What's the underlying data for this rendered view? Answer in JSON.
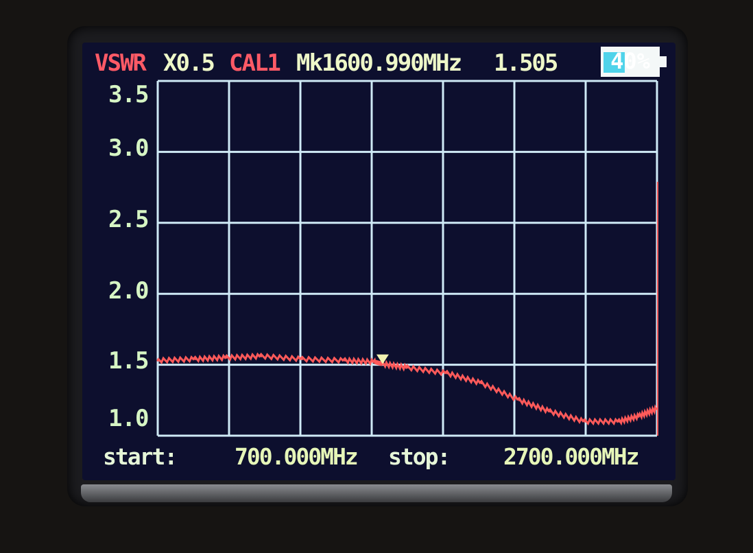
{
  "header": {
    "mode": "VSWR",
    "scale": "X0.5",
    "cal": "CAL1",
    "marker_label": "Mk1600.990MHz",
    "marker_value": "1.505",
    "battery_text": "40%",
    "battery_level_percent": 40
  },
  "footer": {
    "start_label": "start:",
    "start_value": "700.000MHz",
    "stop_label": "stop:",
    "stop_value": "2700.000MHz"
  },
  "colors": {
    "trace": "#ff5a5a",
    "grid": "#cfeaf6",
    "screen": "#0d0f2e",
    "mode": "#ff5a66",
    "marker": "#f2f2b0"
  },
  "chart_data": {
    "type": "line",
    "xlabel": "",
    "ylabel": "",
    "xlim": [
      700,
      2700
    ],
    "ylim": [
      1.0,
      3.5
    ],
    "yticks": [
      "3.5",
      "3.0",
      "2.5",
      "2.0",
      "1.5",
      "1.0"
    ],
    "x_divisions": 7,
    "grid": true,
    "series": [
      {
        "x": [
          700,
          850,
          976,
          1114,
          1279,
          1450,
          1569,
          1601,
          1700,
          1859,
          1997,
          2148,
          2272,
          2410,
          2548,
          2631,
          2700
        ],
        "y": [
          1.53,
          1.54,
          1.55,
          1.56,
          1.54,
          1.53,
          1.52,
          1.505,
          1.48,
          1.44,
          1.37,
          1.25,
          1.17,
          1.1,
          1.1,
          1.14,
          1.19
        ]
      }
    ],
    "marker": {
      "x": 1600.99,
      "y": 1.505
    }
  }
}
